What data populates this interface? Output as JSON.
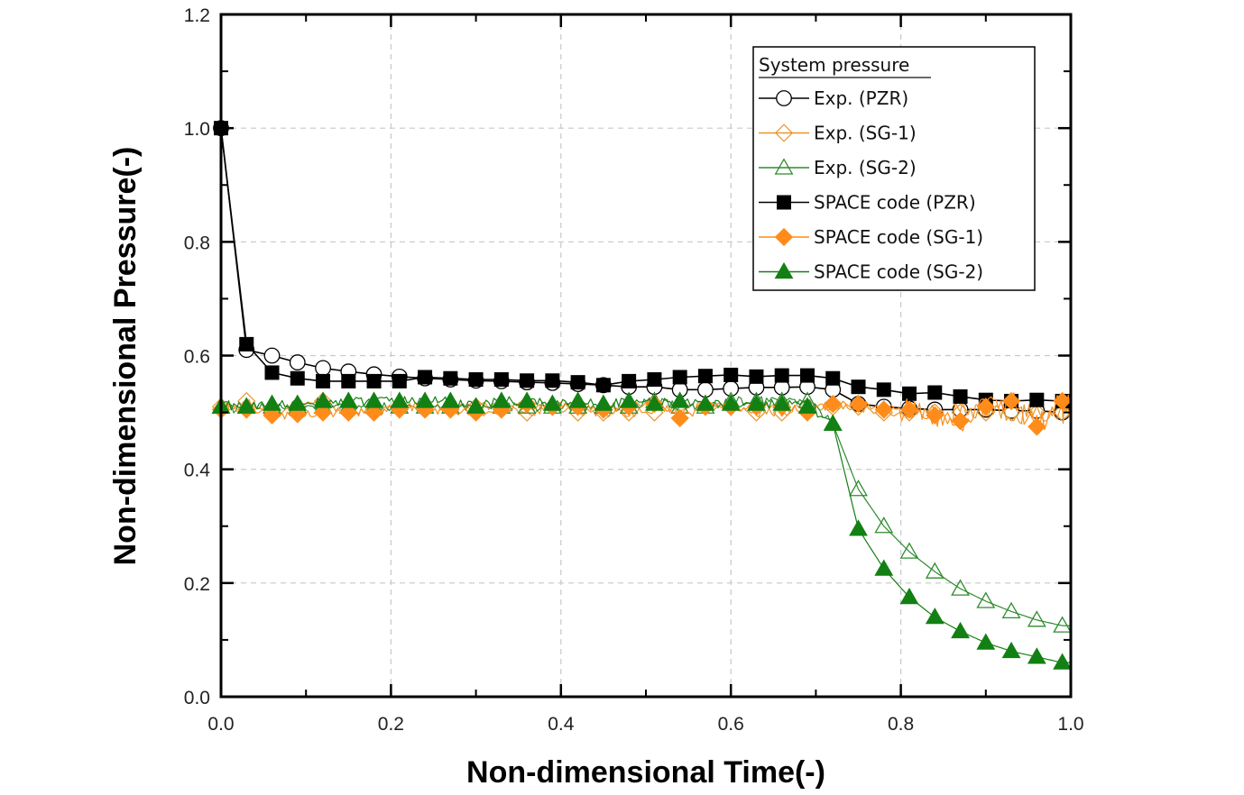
{
  "chart_data": {
    "type": "line",
    "title": "",
    "xlabel": "Non-dimensional Time(-)",
    "ylabel": "Non-dimensional Pressure(-)",
    "xlim": [
      0.0,
      1.0
    ],
    "ylim": [
      0.0,
      1.2
    ],
    "xticks": [
      "0.0",
      "0.2",
      "0.4",
      "0.6",
      "0.8",
      "1.0"
    ],
    "yticks": [
      "0.0",
      "0.2",
      "0.4",
      "0.6",
      "0.8",
      "1.0",
      "1.2"
    ],
    "grid": true,
    "legend": {
      "title": "System pressure",
      "placement": "top-right"
    },
    "series": [
      {
        "name": "Exp. (PZR)",
        "color": "#000000",
        "marker": "circle-open",
        "x": [
          0.0,
          0.03,
          0.06,
          0.09,
          0.12,
          0.15,
          0.18,
          0.21,
          0.24,
          0.27,
          0.3,
          0.33,
          0.36,
          0.39,
          0.42,
          0.45,
          0.48,
          0.51,
          0.54,
          0.57,
          0.6,
          0.63,
          0.66,
          0.69,
          0.72,
          0.75,
          0.78,
          0.81,
          0.84,
          0.87,
          0.9,
          0.93,
          0.96,
          0.99
        ],
        "y": [
          1.0,
          0.61,
          0.6,
          0.588,
          0.578,
          0.572,
          0.567,
          0.563,
          0.56,
          0.558,
          0.556,
          0.555,
          0.553,
          0.552,
          0.55,
          0.548,
          0.545,
          0.545,
          0.54,
          0.54,
          0.542,
          0.544,
          0.544,
          0.545,
          0.54,
          0.515,
          0.51,
          0.507,
          0.505,
          0.505,
          0.505,
          0.503,
          0.503,
          0.5
        ]
      },
      {
        "name": "Exp. (SG-1)",
        "color": "#e8962e",
        "marker": "diamond-open",
        "x": [
          0.0,
          0.03,
          0.06,
          0.09,
          0.12,
          0.15,
          0.18,
          0.21,
          0.24,
          0.27,
          0.3,
          0.33,
          0.36,
          0.39,
          0.42,
          0.45,
          0.48,
          0.51,
          0.54,
          0.57,
          0.6,
          0.63,
          0.66,
          0.69,
          0.72,
          0.75,
          0.78,
          0.81,
          0.84,
          0.87,
          0.9,
          0.93,
          0.96,
          0.99
        ],
        "y": [
          0.51,
          0.52,
          0.5,
          0.51,
          0.52,
          0.5,
          0.5,
          0.51,
          0.51,
          0.51,
          0.51,
          0.51,
          0.5,
          0.51,
          0.5,
          0.5,
          0.5,
          0.5,
          0.51,
          0.51,
          0.51,
          0.5,
          0.5,
          0.51,
          0.51,
          0.51,
          0.5,
          0.5,
          0.5,
          0.5,
          0.5,
          0.5,
          0.5,
          0.5
        ]
      },
      {
        "name": "Exp. (SG-2)",
        "color": "#2e8b2e",
        "marker": "triangle-open",
        "x": [
          0.0,
          0.03,
          0.06,
          0.09,
          0.12,
          0.15,
          0.18,
          0.21,
          0.24,
          0.27,
          0.3,
          0.33,
          0.36,
          0.39,
          0.42,
          0.45,
          0.48,
          0.51,
          0.54,
          0.57,
          0.6,
          0.63,
          0.66,
          0.69,
          0.72,
          0.75,
          0.78,
          0.81,
          0.84,
          0.87,
          0.9,
          0.93,
          0.96,
          0.99
        ],
        "y": [
          0.51,
          0.51,
          0.51,
          0.51,
          0.51,
          0.51,
          0.51,
          0.51,
          0.51,
          0.51,
          0.51,
          0.51,
          0.51,
          0.51,
          0.51,
          0.51,
          0.51,
          0.52,
          0.51,
          0.51,
          0.52,
          0.52,
          0.52,
          0.52,
          0.48,
          0.365,
          0.3,
          0.255,
          0.22,
          0.19,
          0.168,
          0.15,
          0.135,
          0.125
        ]
      },
      {
        "name": "SPACE code (PZR)",
        "color": "#000000",
        "marker": "square-filled",
        "x": [
          0.0,
          0.03,
          0.06,
          0.09,
          0.12,
          0.15,
          0.18,
          0.21,
          0.24,
          0.27,
          0.3,
          0.33,
          0.36,
          0.39,
          0.42,
          0.45,
          0.48,
          0.51,
          0.54,
          0.57,
          0.6,
          0.63,
          0.66,
          0.69,
          0.72,
          0.75,
          0.78,
          0.81,
          0.84,
          0.87,
          0.9,
          0.93,
          0.96,
          0.99
        ],
        "y": [
          1.0,
          0.62,
          0.57,
          0.56,
          0.555,
          0.555,
          0.555,
          0.555,
          0.562,
          0.56,
          0.558,
          0.558,
          0.556,
          0.556,
          0.553,
          0.548,
          0.555,
          0.558,
          0.562,
          0.564,
          0.566,
          0.563,
          0.565,
          0.565,
          0.56,
          0.545,
          0.54,
          0.533,
          0.535,
          0.528,
          0.522,
          0.52,
          0.522,
          0.52
        ]
      },
      {
        "name": "SPACE code (SG-1)",
        "color": "#ff8c1a",
        "marker": "diamond-filled",
        "x": [
          0.0,
          0.03,
          0.06,
          0.09,
          0.12,
          0.15,
          0.18,
          0.21,
          0.24,
          0.27,
          0.3,
          0.33,
          0.36,
          0.39,
          0.42,
          0.45,
          0.48,
          0.51,
          0.54,
          0.57,
          0.6,
          0.63,
          0.66,
          0.69,
          0.72,
          0.75,
          0.78,
          0.81,
          0.84,
          0.87,
          0.9,
          0.93,
          0.96,
          0.99
        ],
        "y": [
          0.505,
          0.505,
          0.495,
          0.497,
          0.5,
          0.5,
          0.5,
          0.505,
          0.505,
          0.505,
          0.5,
          0.505,
          0.515,
          0.51,
          0.51,
          0.505,
          0.51,
          0.515,
          0.49,
          0.51,
          0.51,
          0.51,
          0.51,
          0.5,
          0.515,
          0.515,
          0.505,
          0.505,
          0.495,
          0.485,
          0.51,
          0.52,
          0.475,
          0.52
        ]
      },
      {
        "name": "SPACE code (SG-2)",
        "color": "#138013",
        "marker": "triangle-filled",
        "x": [
          0.0,
          0.03,
          0.06,
          0.09,
          0.12,
          0.15,
          0.18,
          0.21,
          0.24,
          0.27,
          0.3,
          0.33,
          0.36,
          0.39,
          0.42,
          0.45,
          0.48,
          0.51,
          0.54,
          0.57,
          0.6,
          0.63,
          0.66,
          0.69,
          0.72,
          0.75,
          0.78,
          0.81,
          0.84,
          0.87,
          0.9,
          0.93,
          0.96,
          0.99
        ],
        "y": [
          0.51,
          0.51,
          0.515,
          0.515,
          0.52,
          0.52,
          0.52,
          0.52,
          0.52,
          0.52,
          0.51,
          0.52,
          0.52,
          0.515,
          0.52,
          0.515,
          0.52,
          0.515,
          0.52,
          0.515,
          0.515,
          0.515,
          0.515,
          0.51,
          0.48,
          0.295,
          0.225,
          0.175,
          0.14,
          0.115,
          0.095,
          0.08,
          0.07,
          0.06
        ]
      }
    ]
  }
}
